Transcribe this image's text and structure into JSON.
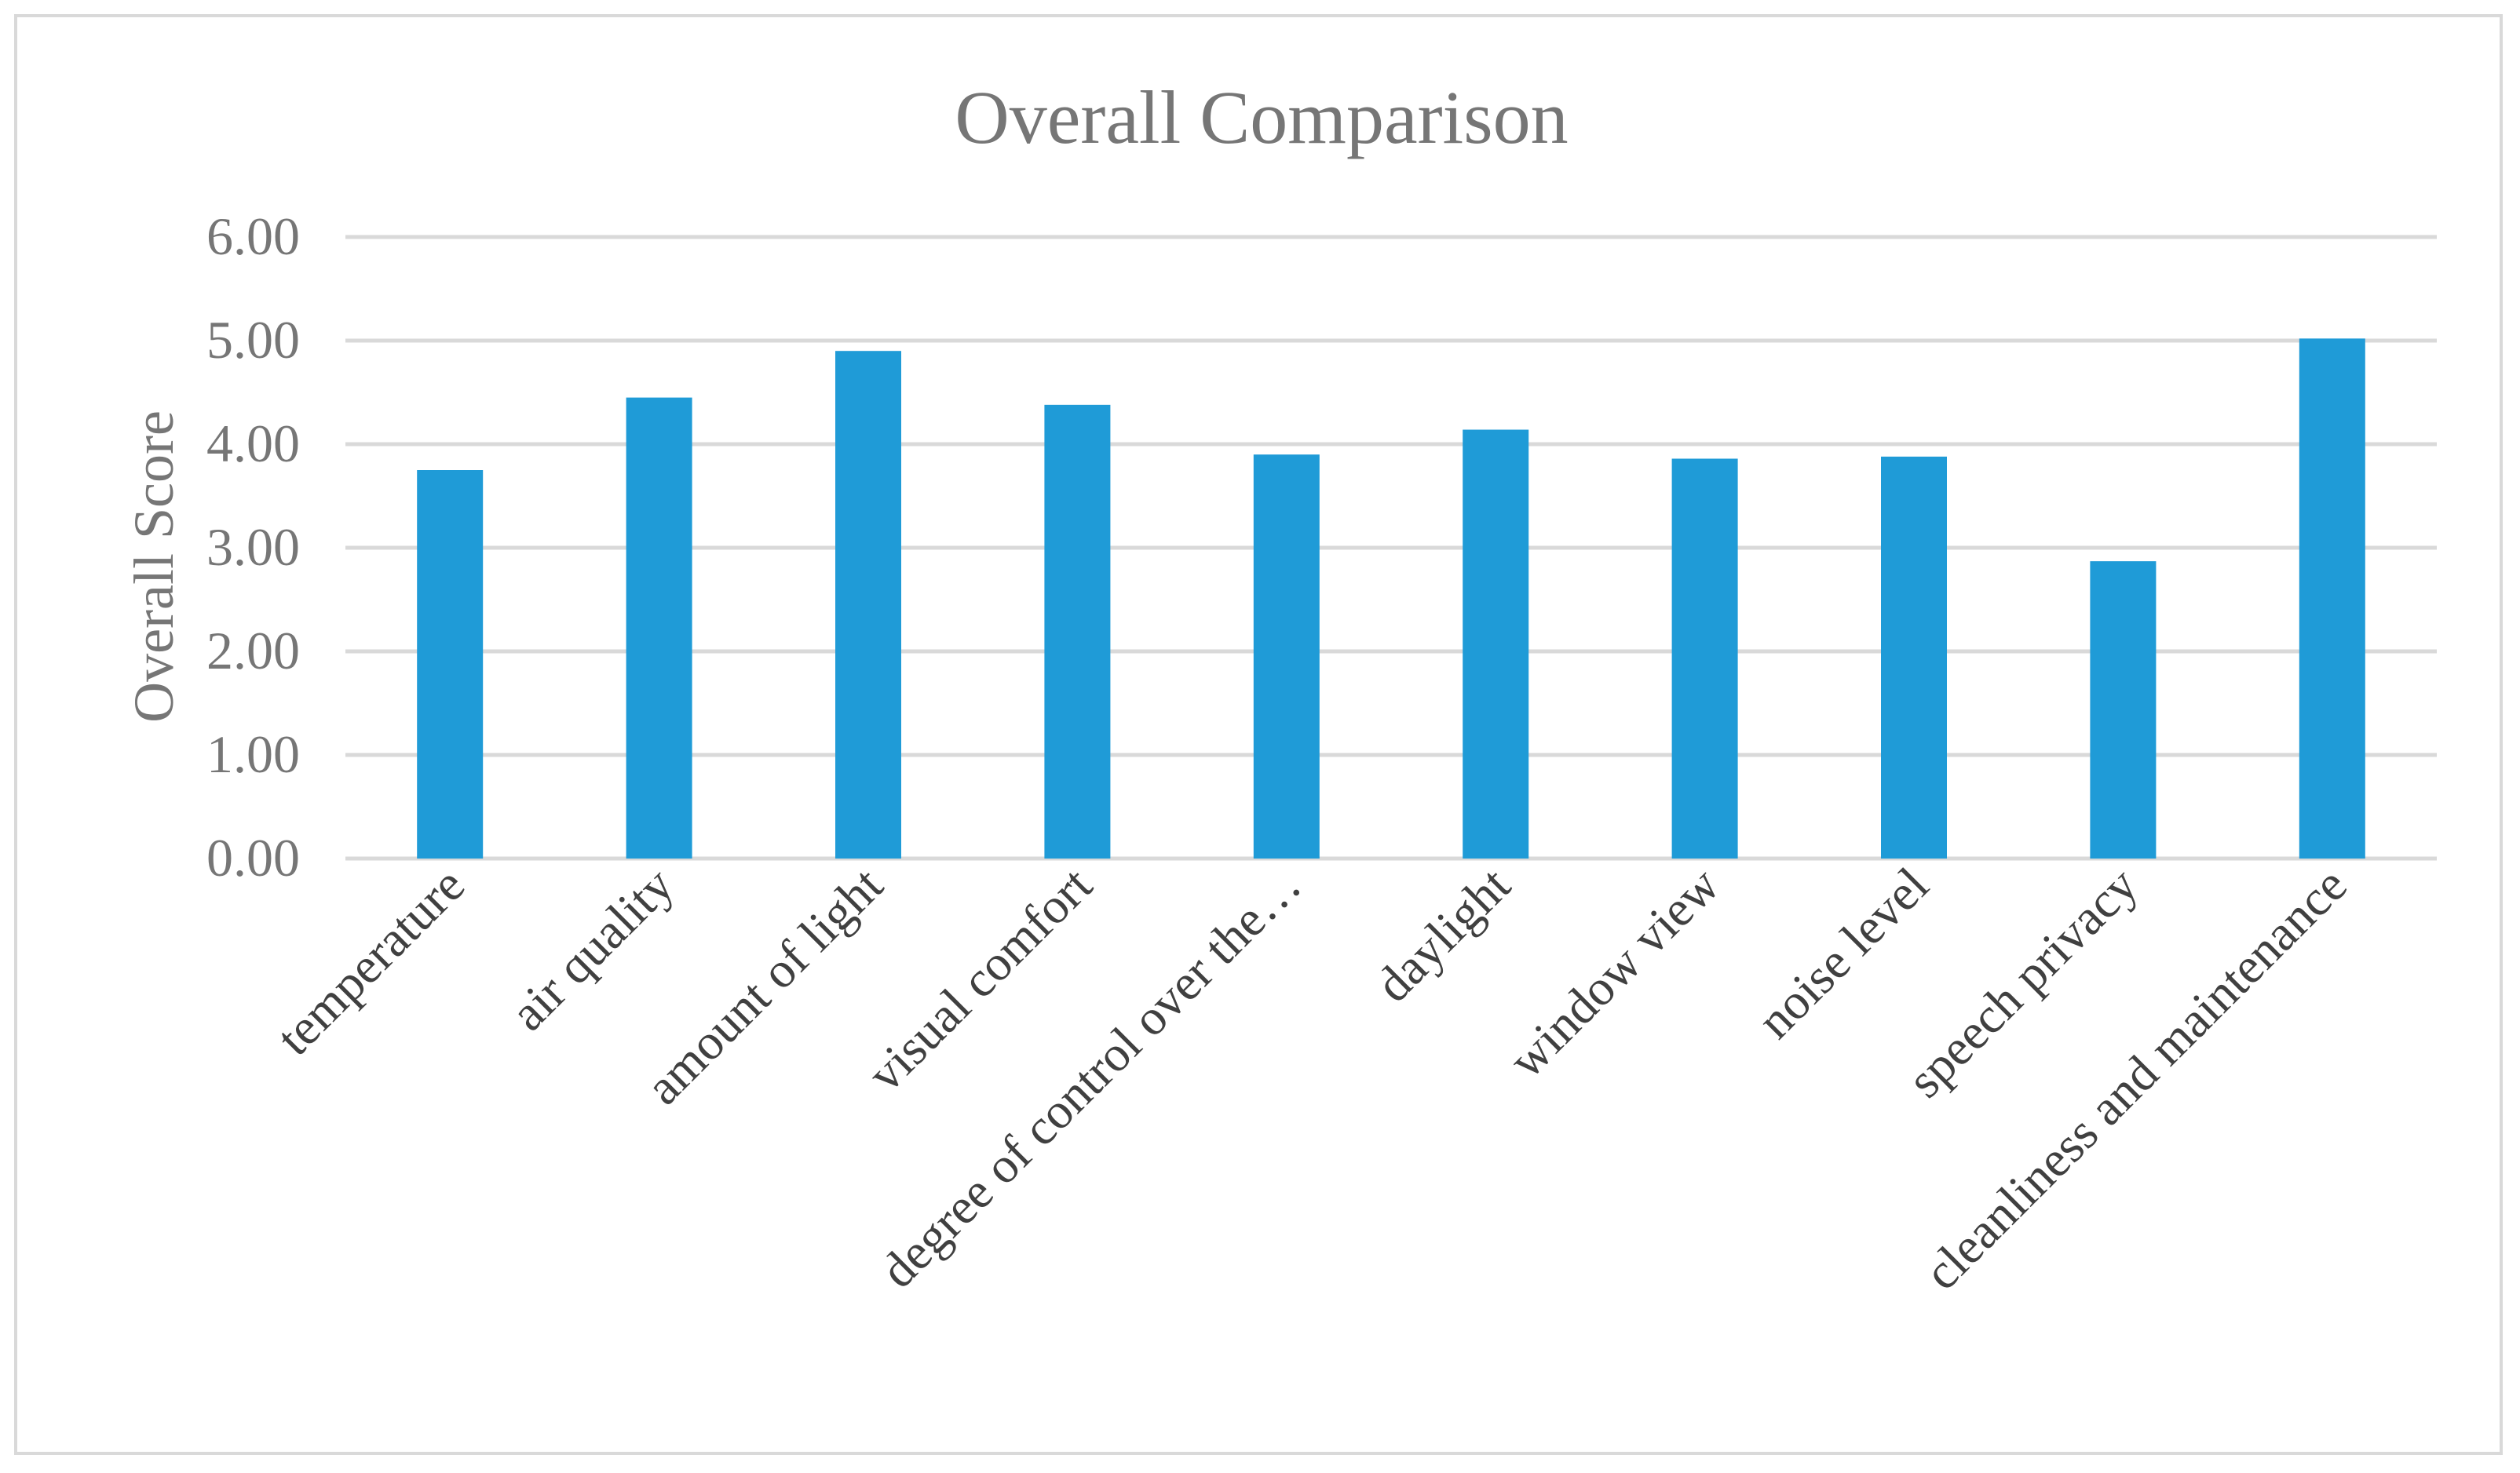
{
  "chart_data": {
    "type": "bar",
    "title": "Overall Comparison",
    "xlabel": "",
    "ylabel": "Overall Score",
    "ylim": [
      0,
      6
    ],
    "yticks": [
      "0.00",
      "1.00",
      "2.00",
      "3.00",
      "4.00",
      "5.00",
      "6.00"
    ],
    "grid": true,
    "legend": "none",
    "bar_color": "#1f9bd7",
    "categories": [
      "temperature",
      "air quality",
      "amount of light",
      "visual comfort",
      "degree of control over the…",
      "daylight",
      "window view",
      "noise level",
      "speech privacy",
      "cleanliness and maintenance"
    ],
    "values": [
      3.75,
      4.45,
      4.9,
      4.38,
      3.9,
      4.14,
      3.86,
      3.88,
      2.87,
      5.02
    ]
  }
}
